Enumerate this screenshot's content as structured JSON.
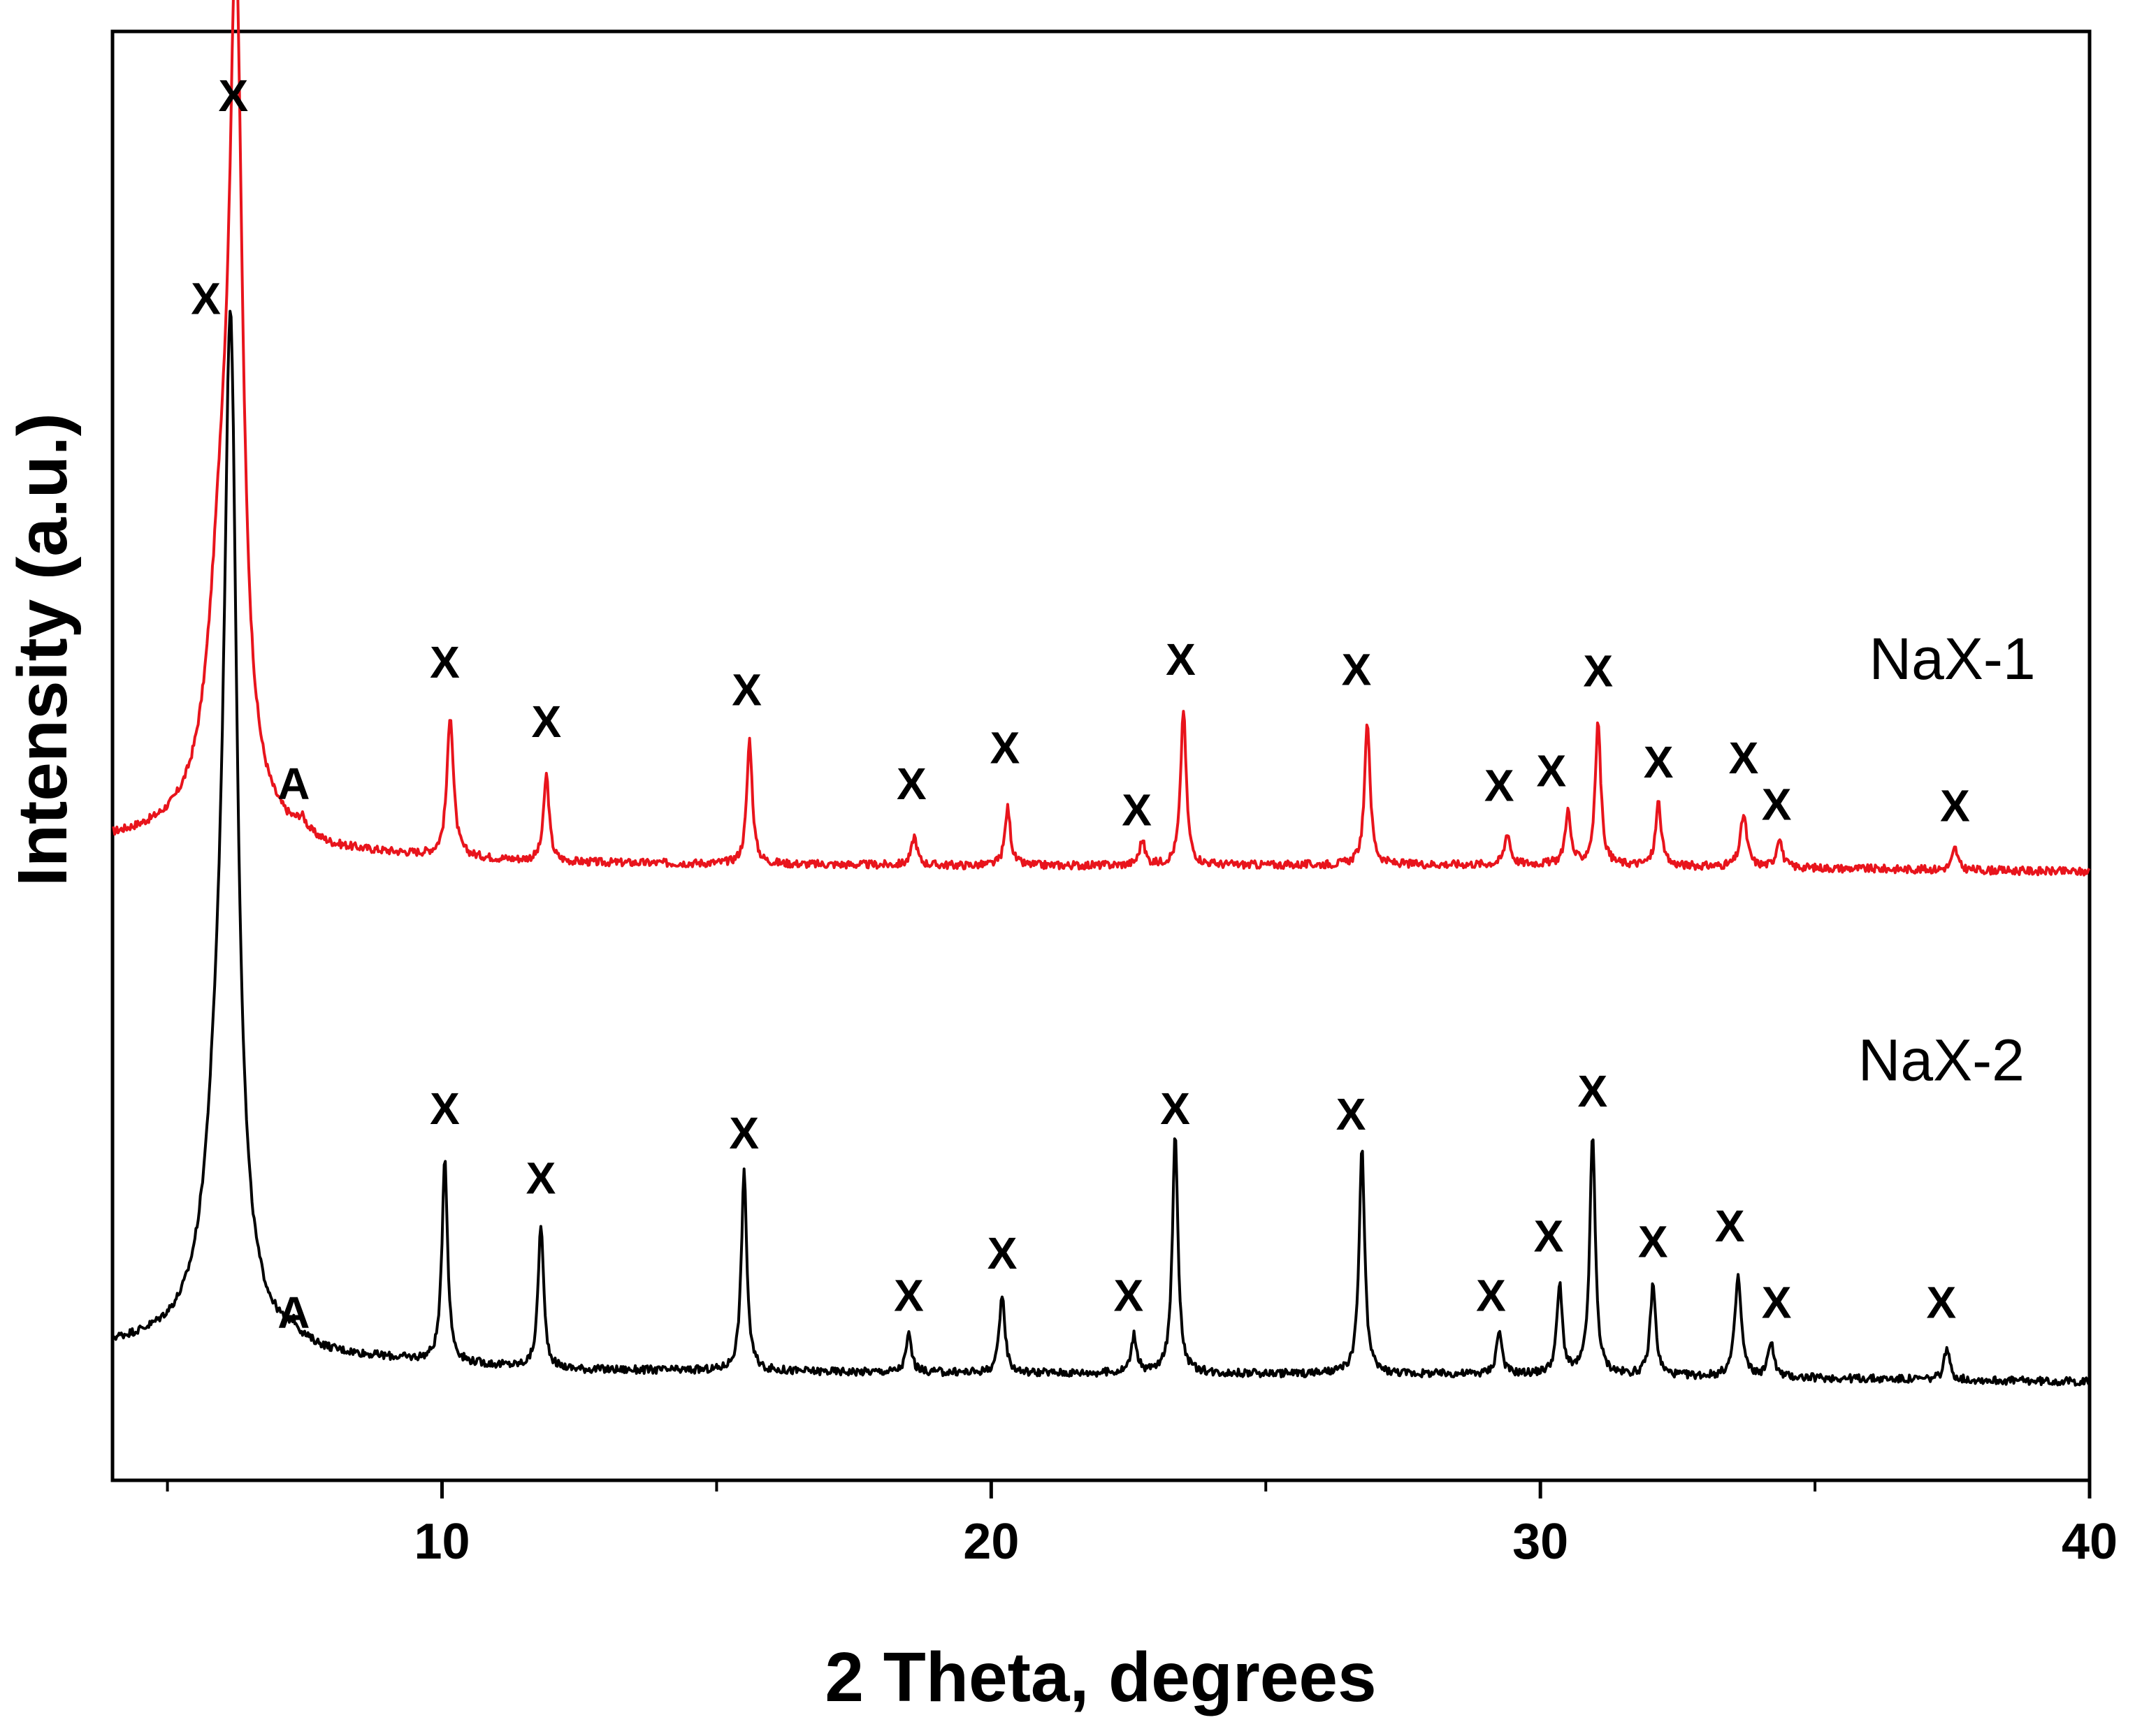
{
  "chart_data": {
    "type": "line",
    "title": "",
    "xlabel": "2 Theta, degrees",
    "ylabel": "Intensity (a.u.)",
    "xlim": [
      4,
      40
    ],
    "ylim": [
      0,
      100
    ],
    "x_ticks": [
      10,
      20,
      30,
      40
    ],
    "x_minor_ticks": [
      5,
      15,
      25,
      35
    ],
    "grid": false,
    "legend": "none",
    "series": [
      {
        "name": "NaX-1",
        "color": "#e8141c",
        "label_pos": [
          37.5,
          55.3
        ],
        "baseline": [
          [
            4,
            44.2
          ],
          [
            6,
            44.8
          ],
          [
            8,
            43.3
          ],
          [
            12,
            42.6
          ],
          [
            20,
            42.4
          ],
          [
            30,
            42.5
          ],
          [
            36,
            42.2
          ],
          [
            40,
            42.0
          ]
        ],
        "peaks": [
          {
            "x": 6.25,
            "h": 50.8,
            "w": 0.14
          },
          {
            "x": 6.0,
            "h": 18.0,
            "w": 0.3
          },
          {
            "x": 7.45,
            "h": 0.8,
            "w": 0.1
          },
          {
            "x": 10.15,
            "h": 9.8,
            "w": 0.07
          },
          {
            "x": 11.9,
            "h": 6.0,
            "w": 0.06
          },
          {
            "x": 15.6,
            "h": 8.6,
            "w": 0.06
          },
          {
            "x": 18.6,
            "h": 2.0,
            "w": 0.06
          },
          {
            "x": 20.3,
            "h": 4.0,
            "w": 0.06
          },
          {
            "x": 22.75,
            "h": 1.7,
            "w": 0.06
          },
          {
            "x": 23.5,
            "h": 10.8,
            "w": 0.06
          },
          {
            "x": 26.85,
            "h": 9.9,
            "w": 0.06
          },
          {
            "x": 29.4,
            "h": 2.2,
            "w": 0.06
          },
          {
            "x": 30.5,
            "h": 3.7,
            "w": 0.06
          },
          {
            "x": 31.05,
            "h": 9.9,
            "w": 0.06
          },
          {
            "x": 32.15,
            "h": 4.4,
            "w": 0.06
          },
          {
            "x": 33.7,
            "h": 3.6,
            "w": 0.07
          },
          {
            "x": 34.35,
            "h": 2.1,
            "w": 0.06
          },
          {
            "x": 37.55,
            "h": 1.5,
            "w": 0.06
          }
        ],
        "peak_labels": [
          {
            "x": 6.2,
            "y": 94.5,
            "text": "X"
          },
          {
            "x": 7.3,
            "y": 47.0,
            "text": "A"
          },
          {
            "x": 10.05,
            "y": 55.4,
            "text": "X"
          },
          {
            "x": 11.9,
            "y": 51.3,
            "text": "X"
          },
          {
            "x": 15.55,
            "y": 53.5,
            "text": "X"
          },
          {
            "x": 18.55,
            "y": 47.0,
            "text": "X"
          },
          {
            "x": 20.25,
            "y": 49.5,
            "text": "X"
          },
          {
            "x": 22.65,
            "y": 45.2,
            "text": "X"
          },
          {
            "x": 23.45,
            "y": 55.6,
            "text": "X"
          },
          {
            "x": 26.65,
            "y": 54.9,
            "text": "X"
          },
          {
            "x": 29.25,
            "y": 46.9,
            "text": "X"
          },
          {
            "x": 30.2,
            "y": 47.9,
            "text": "X"
          },
          {
            "x": 31.05,
            "y": 54.8,
            "text": "X"
          },
          {
            "x": 32.15,
            "y": 48.5,
            "text": "X"
          },
          {
            "x": 33.7,
            "y": 48.8,
            "text": "X"
          },
          {
            "x": 34.3,
            "y": 45.6,
            "text": "X"
          },
          {
            "x": 37.55,
            "y": 45.5,
            "text": "X"
          }
        ]
      },
      {
        "name": "NaX-2",
        "color": "#000000",
        "label_pos": [
          37.3,
          27.6
        ],
        "baseline": [
          [
            4,
            9.3
          ],
          [
            6,
            9.8
          ],
          [
            8,
            8.5
          ],
          [
            12,
            7.6
          ],
          [
            20,
            7.4
          ],
          [
            30,
            7.3
          ],
          [
            36,
            7.0
          ],
          [
            40,
            6.8
          ]
        ],
        "peaks": [
          {
            "x": 6.15,
            "h": 61.5,
            "w": 0.14
          },
          {
            "x": 5.95,
            "h": 14.0,
            "w": 0.3
          },
          {
            "x": 7.3,
            "h": 0.6,
            "w": 0.1
          },
          {
            "x": 10.05,
            "h": 14.2,
            "w": 0.06
          },
          {
            "x": 11.8,
            "h": 10.0,
            "w": 0.06
          },
          {
            "x": 15.5,
            "h": 13.7,
            "w": 0.06
          },
          {
            "x": 18.5,
            "h": 2.6,
            "w": 0.06
          },
          {
            "x": 20.2,
            "h": 5.4,
            "w": 0.06
          },
          {
            "x": 22.6,
            "h": 2.6,
            "w": 0.06
          },
          {
            "x": 23.35,
            "h": 16.7,
            "w": 0.06
          },
          {
            "x": 26.75,
            "h": 15.6,
            "w": 0.06
          },
          {
            "x": 29.25,
            "h": 3.0,
            "w": 0.06
          },
          {
            "x": 30.35,
            "h": 6.1,
            "w": 0.06
          },
          {
            "x": 30.95,
            "h": 16.6,
            "w": 0.06
          },
          {
            "x": 32.05,
            "h": 6.3,
            "w": 0.06
          },
          {
            "x": 33.6,
            "h": 6.9,
            "w": 0.07
          },
          {
            "x": 34.2,
            "h": 2.5,
            "w": 0.06
          },
          {
            "x": 37.4,
            "h": 2.2,
            "w": 0.06
          }
        ],
        "peak_labels": [
          {
            "x": 5.7,
            "y": 80.5,
            "text": "X"
          },
          {
            "x": 7.3,
            "y": 10.5,
            "text": "A"
          },
          {
            "x": 10.05,
            "y": 24.6,
            "text": "X"
          },
          {
            "x": 11.8,
            "y": 19.8,
            "text": "X"
          },
          {
            "x": 15.5,
            "y": 22.9,
            "text": "X"
          },
          {
            "x": 18.5,
            "y": 11.7,
            "text": "X"
          },
          {
            "x": 20.2,
            "y": 14.6,
            "text": "X"
          },
          {
            "x": 22.5,
            "y": 11.7,
            "text": "X"
          },
          {
            "x": 23.35,
            "y": 24.6,
            "text": "X"
          },
          {
            "x": 26.55,
            "y": 24.2,
            "text": "X"
          },
          {
            "x": 29.1,
            "y": 11.7,
            "text": "X"
          },
          {
            "x": 30.15,
            "y": 15.8,
            "text": "X"
          },
          {
            "x": 30.95,
            "y": 25.8,
            "text": "X"
          },
          {
            "x": 32.05,
            "y": 15.4,
            "text": "X"
          },
          {
            "x": 33.45,
            "y": 16.5,
            "text": "X"
          },
          {
            "x": 34.3,
            "y": 11.2,
            "text": "X"
          },
          {
            "x": 37.3,
            "y": 11.2,
            "text": "X"
          }
        ]
      }
    ]
  }
}
